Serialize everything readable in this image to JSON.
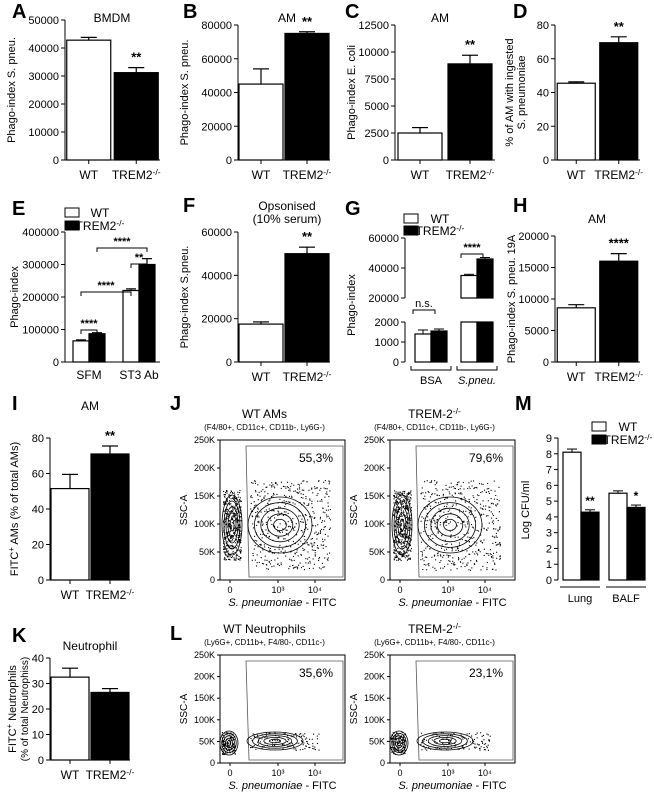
{
  "chart_data": [
    {
      "type": "bar",
      "panel": "A",
      "title": "BMDM",
      "ylabel": "Phago-index S. pneu.",
      "ylim": [
        0,
        50000
      ],
      "yticks": [
        "0",
        "10000",
        "20000",
        "30000",
        "40000",
        "50000"
      ],
      "categories": [
        "WT",
        "TREM2-/-"
      ],
      "values": [
        42800,
        31200
      ],
      "errors": [
        1000,
        1800
      ],
      "fills": [
        "#ffffff",
        "#000000"
      ],
      "sig": "**"
    },
    {
      "type": "bar",
      "panel": "B",
      "title": "AM",
      "ylabel": "Phago-index S. pneu.",
      "ylim": [
        0,
        80000
      ],
      "yticks": [
        "0",
        "20000",
        "40000",
        "60000",
        "80000"
      ],
      "categories": [
        "WT",
        "TREM2-/-"
      ],
      "values": [
        45000,
        75000
      ],
      "errors": [
        9000,
        1000
      ],
      "fills": [
        "#ffffff",
        "#000000"
      ],
      "sig": "**"
    },
    {
      "type": "bar",
      "panel": "C",
      "title": "AM",
      "ylabel": "Phago-index E. coli",
      "ylim": [
        0,
        12500
      ],
      "yticks": [
        "0",
        "2500",
        "5000",
        "7500",
        "10000",
        "12500"
      ],
      "categories": [
        "WT",
        "TREM2-/-"
      ],
      "values": [
        2500,
        8900
      ],
      "errors": [
        500,
        800
      ],
      "fills": [
        "#ffffff",
        "#000000"
      ],
      "sig": "**"
    },
    {
      "type": "bar",
      "panel": "D",
      "title": "",
      "ylabel": "% of AM with ingested S. pneumoniae",
      "ylim": [
        0,
        80
      ],
      "yticks": [
        "0",
        "20",
        "40",
        "60",
        "80"
      ],
      "categories": [
        "WT",
        "TREM2-/-"
      ],
      "values": [
        45.5,
        69.5
      ],
      "errors": [
        0.8,
        3.5
      ],
      "fills": [
        "#ffffff",
        "#000000"
      ],
      "sig": "**"
    },
    {
      "type": "bar",
      "panel": "E",
      "title": "",
      "ylabel": "Phago-index",
      "ylim": [
        0,
        400000
      ],
      "yticks": [
        "0",
        "100000",
        "200000",
        "300000",
        "400000"
      ],
      "categories": [
        "SFM",
        "ST3 Ab"
      ],
      "series": [
        {
          "name": "WT",
          "values": [
            65000,
            220000
          ],
          "errors": [
            3000,
            5000
          ]
        },
        {
          "name": "TREM2-/-",
          "values": [
            87000,
            300000
          ],
          "errors": [
            3000,
            18000
          ]
        }
      ],
      "legend": "top-left",
      "sig": [
        "****",
        "****",
        "****",
        "**"
      ]
    },
    {
      "type": "bar",
      "panel": "F",
      "title": "Opsonised (10% serum)",
      "ylabel": "Phago-index S.pneu.",
      "ylim": [
        0,
        60000
      ],
      "yticks": [
        "0",
        "20000",
        "40000",
        "60000"
      ],
      "categories": [
        "WT",
        "TREM2-/-"
      ],
      "values": [
        17500,
        50000
      ],
      "errors": [
        1000,
        3000
      ],
      "fills": [
        "#ffffff",
        "#000000"
      ],
      "sig": "**"
    },
    {
      "type": "bar",
      "panel": "G",
      "title": "",
      "ylabel": "Phago-index",
      "broken_axis": true,
      "yticks": [
        "0",
        "1000",
        "2000",
        "20000",
        "40000",
        "60000"
      ],
      "categories": [
        "BSA",
        "S.pneu."
      ],
      "series": [
        {
          "name": "WT",
          "values": [
            1400,
            35000
          ],
          "errors": [
            200,
            800
          ]
        },
        {
          "name": "TREM2-/-",
          "values": [
            1550,
            46000
          ],
          "errors": [
            100,
            1000
          ]
        }
      ],
      "legend": "top-left",
      "sig": [
        "n.s.",
        "****"
      ]
    },
    {
      "type": "bar",
      "panel": "H",
      "title": "AM",
      "ylabel": "Phago-index S. pneu. 19A",
      "ylim": [
        0,
        20000
      ],
      "yticks": [
        "0",
        "5000",
        "10000",
        "15000",
        "20000"
      ],
      "categories": [
        "WT",
        "TREM2-/-"
      ],
      "values": [
        8600,
        16000
      ],
      "errors": [
        500,
        1200
      ],
      "fills": [
        "#ffffff",
        "#000000"
      ],
      "sig": "****"
    },
    {
      "type": "bar",
      "panel": "I",
      "title": "AM",
      "ylabel": "FITC+ AMs (% of total AMs)",
      "ylim": [
        0,
        80
      ],
      "yticks": [
        "0",
        "20",
        "40",
        "60",
        "80"
      ],
      "categories": [
        "WT",
        "TREM2-/-"
      ],
      "values": [
        51.5,
        71
      ],
      "errors": [
        8,
        4.5
      ],
      "fills": [
        "#ffffff",
        "#000000"
      ],
      "sig": "**"
    },
    {
      "type": "bar",
      "panel": "K",
      "title": "Neutrophil",
      "ylabel": "FITC+ Neutrophils (% of total Neutrophils)",
      "ylim": [
        0,
        40
      ],
      "yticks": [
        "0",
        "10",
        "20",
        "30",
        "40"
      ],
      "categories": [
        "WT",
        "TREM2-/-"
      ],
      "values": [
        32.5,
        26.5
      ],
      "errors": [
        3.5,
        1.5
      ],
      "fills": [
        "#ffffff",
        "#000000"
      ],
      "sig": ""
    },
    {
      "type": "bar",
      "panel": "M",
      "title": "",
      "ylabel": "Log CFU/ml",
      "ylim": [
        0,
        9
      ],
      "yticks": [
        "0",
        "1",
        "2",
        "3",
        "4",
        "5",
        "6",
        "7",
        "8",
        "9"
      ],
      "categories": [
        "Lung",
        "BALF"
      ],
      "series": [
        {
          "name": "WT",
          "values": [
            8.1,
            5.5
          ],
          "errors": [
            0.2,
            0.15
          ]
        },
        {
          "name": "TREM2-/-",
          "values": [
            4.3,
            4.6
          ],
          "errors": [
            0.15,
            0.15
          ]
        }
      ],
      "legend": "top-right",
      "sig": [
        "**",
        "*"
      ]
    },
    {
      "type": "scatter",
      "panel": "J",
      "subtitle": "WT AMs",
      "subtitle2": "(F4/80+, CD11c+, CD11b-, Ly6G-)",
      "gate_percent": "55,3%",
      "ylabel": "SSC-A",
      "xlabel": "S. pneumoniae - FITC",
      "yticks": [
        "0",
        "50K",
        "100K",
        "150K",
        "200K",
        "250K"
      ],
      "xticks": [
        "0",
        "10³",
        "10⁴"
      ]
    },
    {
      "type": "scatter",
      "panel": "J",
      "subtitle": "TREM-2-/- AMs",
      "subtitle2": "(F4/80+, CD11c+, CD11b-, Ly6G-)",
      "gate_percent": "79,6%",
      "ylabel": "SSC-A",
      "xlabel": "S. pneumoniae - FITC",
      "yticks": [
        "0",
        "50K",
        "100K",
        "150K",
        "200K",
        "250K"
      ],
      "xticks": [
        "0",
        "10³",
        "10⁴"
      ]
    },
    {
      "type": "scatter",
      "panel": "L",
      "subtitle": "WT Neutrophils",
      "subtitle2": "(Ly6G+, CD11b+, F4/80-, CD11c-)",
      "gate_percent": "35,6%",
      "ylabel": "SSC-A",
      "xlabel": "S. pneumoniae - FITC",
      "yticks": [
        "0",
        "50K",
        "100K",
        "150K",
        "200K",
        "250K"
      ],
      "xticks": [
        "0",
        "10³",
        "10⁴"
      ]
    },
    {
      "type": "scatter",
      "panel": "L",
      "subtitle": "TREM-2-/- Neutrophils",
      "subtitle2": "(Ly6G+, CD11b+, F4/80-, CD11c-)",
      "gate_percent": "23,1%",
      "ylabel": "SSC-A",
      "xlabel": "S. pneumoniae - FITC",
      "yticks": [
        "0",
        "50K",
        "100K",
        "150K",
        "200K",
        "250K"
      ],
      "xticks": [
        "0",
        "10³",
        "10⁴"
      ]
    }
  ],
  "panel_letters": [
    "A",
    "B",
    "C",
    "D",
    "E",
    "F",
    "G",
    "H",
    "I",
    "J",
    "K",
    "L",
    "M"
  ]
}
